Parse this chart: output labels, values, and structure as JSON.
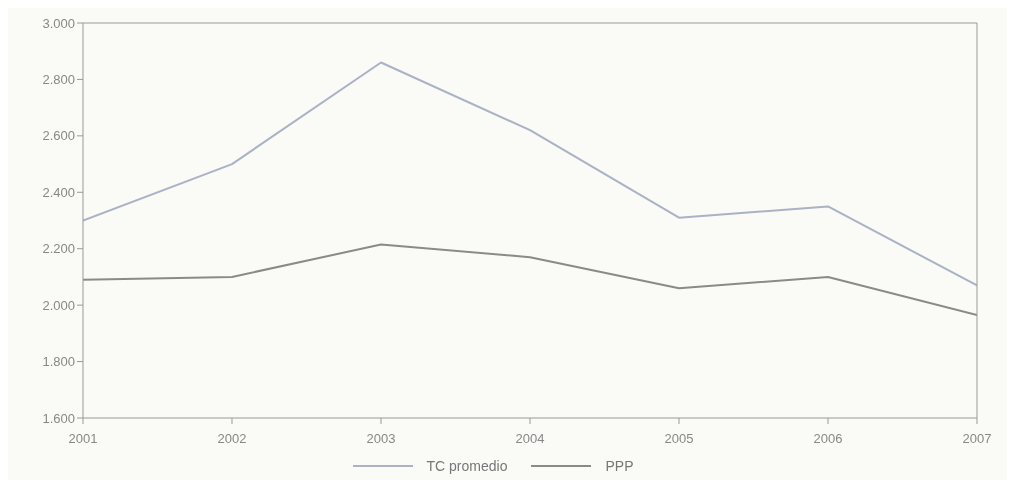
{
  "chart_data": {
    "type": "line",
    "categories": [
      "2001",
      "2002",
      "2003",
      "2004",
      "2005",
      "2006",
      "2007"
    ],
    "series": [
      {
        "name": "TC promedio",
        "color": "#a9b3c4",
        "values": [
          2300,
          2500,
          2860,
          2620,
          2310,
          2350,
          2070
        ]
      },
      {
        "name": "PPP",
        "color": "#8a8a8a",
        "values": [
          2090,
          2100,
          2215,
          2170,
          2060,
          2100,
          1965
        ]
      }
    ],
    "ylim": [
      1600,
      3000
    ],
    "yticks": [
      {
        "value": 1600,
        "label": "1.600"
      },
      {
        "value": 1800,
        "label": "1.800"
      },
      {
        "value": 2000,
        "label": "2.000"
      },
      {
        "value": 2200,
        "label": "2.200"
      },
      {
        "value": 2400,
        "label": "2.400"
      },
      {
        "value": 2600,
        "label": "2.600"
      },
      {
        "value": 2800,
        "label": "2.800"
      },
      {
        "value": 3000,
        "label": "3.000"
      }
    ],
    "legend": "bottom",
    "marker": "none",
    "grid": false
  }
}
